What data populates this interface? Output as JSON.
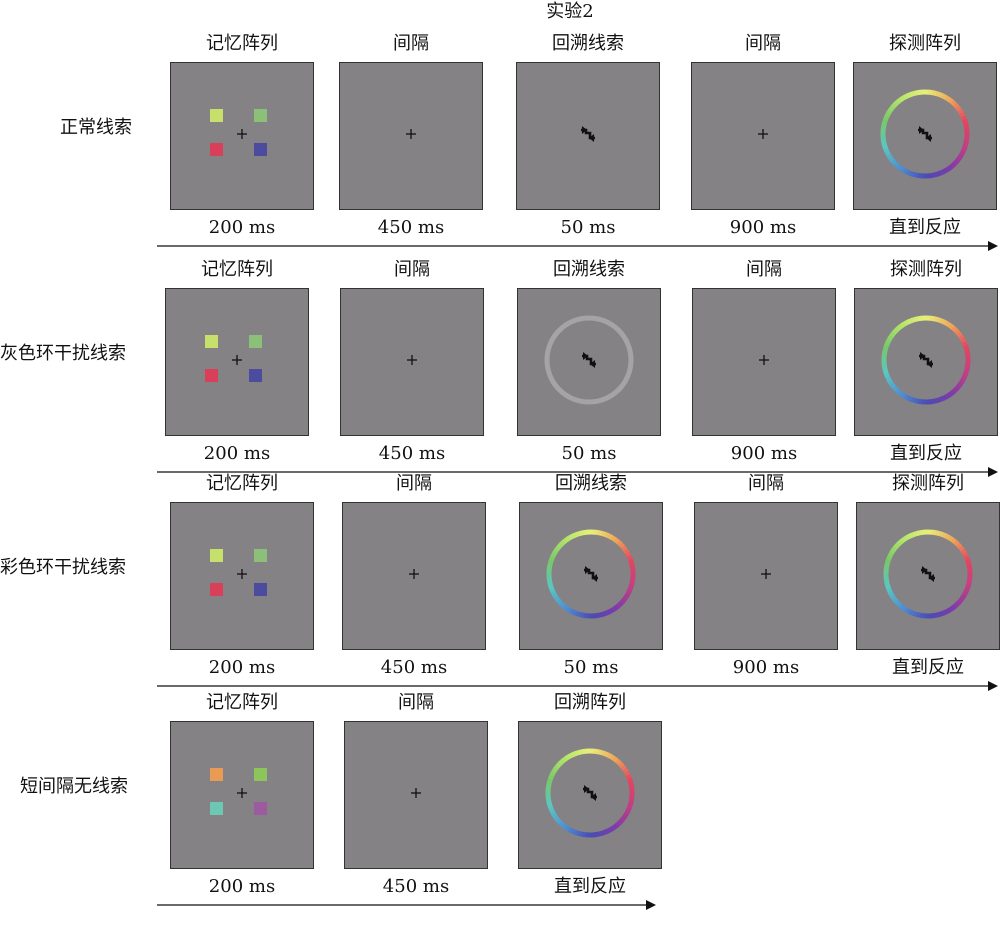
{
  "title": "实验2",
  "colors": {
    "screen_bg": "#858285",
    "fixation": "#111111",
    "gray_ring": "#a6a3a6",
    "wheel_stops": [
      "#e8f07a",
      "#eda75a",
      "#e2465f",
      "#c23f84",
      "#7c3bab",
      "#4a4db3",
      "#4f8fd1",
      "#5bc7c0",
      "#78c86a",
      "#b3e46b",
      "#e8f07a"
    ]
  },
  "rows": [
    {
      "label": "正常线索",
      "frames": [
        {
          "label": "记忆阵列",
          "duration": "200 ms",
          "content": "array",
          "squares": [
            "#c7e06b",
            "#8cc079",
            "#d93f58",
            "#4b4c9d"
          ]
        },
        {
          "label": "间隔",
          "duration": "450 ms",
          "content": "fixation"
        },
        {
          "label": "回溯线索",
          "duration": "50 ms",
          "content": "cue"
        },
        {
          "label": "间隔",
          "duration": "900 ms",
          "content": "fixation"
        },
        {
          "label": "探测阵列",
          "duration": "直到反应",
          "content": "probe"
        }
      ]
    },
    {
      "label": "灰色环干扰线索",
      "frames": [
        {
          "label": "记忆阵列",
          "duration": "200 ms",
          "content": "array",
          "squares": [
            "#c7e06b",
            "#8cc079",
            "#d93f58",
            "#4b4c9d"
          ]
        },
        {
          "label": "间隔",
          "duration": "450 ms",
          "content": "fixation"
        },
        {
          "label": "回溯线索",
          "duration": "50 ms",
          "content": "cue-gray-ring"
        },
        {
          "label": "间隔",
          "duration": "900 ms",
          "content": "fixation"
        },
        {
          "label": "探测阵列",
          "duration": "直到反应",
          "content": "probe"
        }
      ]
    },
    {
      "label": "彩色环干扰线索",
      "frames": [
        {
          "label": "记忆阵列",
          "duration": "200 ms",
          "content": "array",
          "squares": [
            "#c7e06b",
            "#8cc079",
            "#d93f58",
            "#4b4c9d"
          ]
        },
        {
          "label": "间隔",
          "duration": "450 ms",
          "content": "fixation"
        },
        {
          "label": "回溯线索",
          "duration": "50 ms",
          "content": "cue-color-ring"
        },
        {
          "label": "间隔",
          "duration": "900 ms",
          "content": "fixation"
        },
        {
          "label": "探测阵列",
          "duration": "直到反应",
          "content": "probe"
        }
      ]
    },
    {
      "label": "短间隔无线索",
      "frames": [
        {
          "label": "记忆阵列",
          "duration": "200 ms",
          "content": "array",
          "squares": [
            "#e99a55",
            "#8cc65a",
            "#6cc7b3",
            "#9c5a9f"
          ]
        },
        {
          "label": "间隔",
          "duration": "450 ms",
          "content": "fixation"
        },
        {
          "label": "回溯阵列",
          "duration": "直到反应",
          "content": "probe"
        }
      ]
    }
  ]
}
